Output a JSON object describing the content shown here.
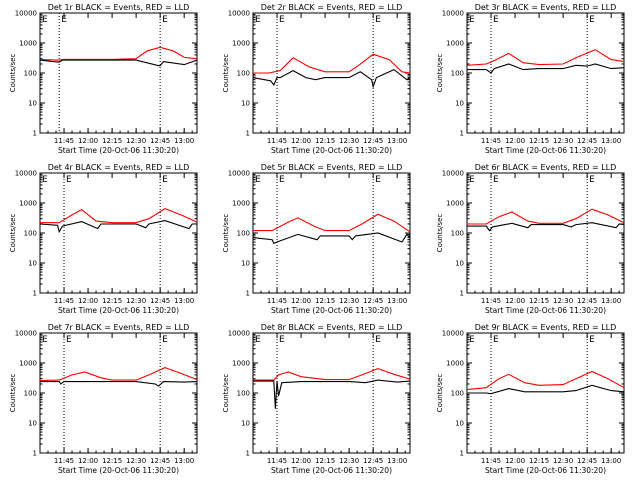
{
  "figure": {
    "xlabel": "Start Time (20-Oct-06 11:30:20)",
    "ylabel": "Counts/sec",
    "colors": {
      "events": "#000000",
      "lld": "#ff0000",
      "axes": "#000000",
      "background": "#ffffff"
    }
  },
  "chart_data": [
    {
      "type": "line",
      "title": "Det 1r BLACK = Events, RED = LLD",
      "xlabel": "Start Time (20-Oct-06 11:30:20)",
      "ylabel": "Counts/sec",
      "xticks": [
        "11:45",
        "12:00",
        "12:15",
        "12:30",
        "12:45",
        "13:00"
      ],
      "yticks": [
        "1",
        "10",
        "100",
        "1000",
        "10000"
      ],
      "ylim": [
        1,
        10000
      ],
      "yscale": "log",
      "xlim_minutes_after_11:30": [
        0,
        98
      ],
      "vlines": [
        "11:42",
        "12:45"
      ],
      "markers": [
        "E",
        "E"
      ],
      "series": [
        {
          "name": "Events",
          "color": "#000000",
          "x": [
            "11:30",
            "11:41",
            "11:42",
            "11:44",
            "12:00",
            "12:15",
            "12:30",
            "12:44",
            "12:45",
            "12:47",
            "13:00",
            "13:08"
          ],
          "y": [
            270,
            230,
            230,
            270,
            270,
            270,
            270,
            175,
            175,
            240,
            190,
            270
          ]
        },
        {
          "name": "LLD",
          "color": "#ff0000",
          "x": [
            "11:30",
            "11:41",
            "11:42",
            "11:44",
            "12:00",
            "12:15",
            "12:30",
            "12:37",
            "12:45",
            "12:53",
            "13:00",
            "13:08"
          ],
          "y": [
            280,
            270,
            270,
            285,
            285,
            285,
            300,
            550,
            720,
            550,
            330,
            300
          ]
        }
      ]
    },
    {
      "type": "line",
      "title": "Det 2r BLACK = Events, RED = LLD",
      "xlabel": "Start Time (20-Oct-06 11:30:20)",
      "ylabel": "Counts/sec",
      "xticks": [
        "11:45",
        "12:00",
        "12:15",
        "12:30",
        "12:45",
        "13:00"
      ],
      "yticks": [
        "1",
        "10",
        "100",
        "1000",
        "10000"
      ],
      "ylim": [
        1,
        10000
      ],
      "yscale": "log",
      "xlim_minutes_after_11:30": [
        0,
        98
      ],
      "vlines": [
        "11:45",
        "12:45"
      ],
      "markers": [
        "E",
        "E"
      ],
      "series": [
        {
          "name": "Events",
          "color": "#000000",
          "x": [
            "11:30",
            "11:41",
            "11:43",
            "11:45",
            "11:47",
            "11:55",
            "12:03",
            "12:09",
            "12:15",
            "12:30",
            "12:37",
            "12:44",
            "12:45",
            "12:47",
            "12:58",
            "13:06",
            "13:08"
          ],
          "y": [
            70,
            55,
            40,
            70,
            70,
            120,
            70,
            60,
            70,
            70,
            110,
            60,
            35,
            70,
            130,
            60,
            70
          ]
        },
        {
          "name": "LLD",
          "color": "#ff0000",
          "x": [
            "11:30",
            "11:40",
            "11:47",
            "11:55",
            "12:05",
            "12:15",
            "12:30",
            "12:36",
            "12:45",
            "12:55",
            "13:03",
            "13:08"
          ],
          "y": [
            100,
            100,
            120,
            320,
            160,
            110,
            110,
            180,
            420,
            280,
            110,
            100
          ]
        }
      ]
    },
    {
      "type": "line",
      "title": "Det 3r BLACK = Events, RED = LLD",
      "xlabel": "Start Time (20-Oct-06 11:30:20)",
      "ylabel": "Counts/sec",
      "xticks": [
        "11:45",
        "12:00",
        "12:15",
        "12:30",
        "12:45",
        "13:00"
      ],
      "yticks": [
        "1",
        "10",
        "100",
        "1000",
        "10000"
      ],
      "ylim": [
        1,
        10000
      ],
      "yscale": "log",
      "xlim_minutes_after_11:30": [
        0,
        98
      ],
      "vlines": [
        "11:45",
        "12:45"
      ],
      "markers": [
        "E",
        "E"
      ],
      "series": [
        {
          "name": "Events",
          "color": "#000000",
          "x": [
            "11:30",
            "11:42",
            "11:45",
            "11:47",
            "11:56",
            "12:05",
            "12:15",
            "12:30",
            "12:38",
            "12:45",
            "12:50",
            "13:00",
            "13:08"
          ],
          "y": [
            130,
            130,
            100,
            140,
            200,
            130,
            140,
            140,
            180,
            170,
            200,
            140,
            150
          ]
        },
        {
          "name": "LLD",
          "color": "#ff0000",
          "x": [
            "11:30",
            "11:42",
            "11:47",
            "11:56",
            "12:05",
            "12:15",
            "12:30",
            "12:38",
            "12:50",
            "13:00",
            "13:08"
          ],
          "y": [
            180,
            200,
            260,
            450,
            220,
            190,
            200,
            320,
            600,
            280,
            240
          ]
        }
      ]
    },
    {
      "type": "line",
      "title": "Det 4r BLACK = Events, RED = LLD",
      "xlabel": "Start Time (20-Oct-06 11:30:20)",
      "ylabel": "Counts/sec",
      "xticks": [
        "11:45",
        "12:00",
        "12:15",
        "12:30",
        "12:45",
        "13:00"
      ],
      "yticks": [
        "1",
        "10",
        "100",
        "1000",
        "10000"
      ],
      "ylim": [
        1,
        10000
      ],
      "yscale": "log",
      "xlim_minutes_after_11:30": [
        0,
        98
      ],
      "vlines": [
        "11:45",
        "12:45"
      ],
      "markers": [
        "E",
        "E"
      ],
      "series": [
        {
          "name": "Events",
          "color": "#000000",
          "x": [
            "11:30",
            "11:41",
            "11:42",
            "11:44",
            "11:56",
            "12:06",
            "12:08",
            "12:15",
            "12:30",
            "12:36",
            "12:38",
            "12:48",
            "13:03",
            "13:05",
            "13:08"
          ],
          "y": [
            200,
            180,
            110,
            170,
            240,
            140,
            200,
            200,
            200,
            150,
            200,
            260,
            140,
            200,
            200
          ]
        },
        {
          "name": "LLD",
          "color": "#ff0000",
          "x": [
            "11:30",
            "11:42",
            "11:50",
            "11:56",
            "12:05",
            "12:15",
            "12:30",
            "12:38",
            "12:48",
            "12:58",
            "13:08"
          ],
          "y": [
            220,
            220,
            400,
            600,
            250,
            220,
            220,
            300,
            650,
            400,
            230
          ]
        }
      ]
    },
    {
      "type": "line",
      "title": "Det 5r BLACK = Events, RED = LLD",
      "xlabel": "Start Time (20-Oct-06 11:30:20)",
      "ylabel": "Counts/sec",
      "xticks": [
        "11:45",
        "12:00",
        "12:15",
        "12:30",
        "12:45",
        "13:00"
      ],
      "yticks": [
        "1",
        "10",
        "100",
        "1000",
        "10000"
      ],
      "ylim": [
        1,
        10000
      ],
      "yscale": "log",
      "xlim_minutes_after_11:30": [
        0,
        98
      ],
      "vlines": [
        "11:45",
        "12:45"
      ],
      "markers": [
        "E",
        "E"
      ],
      "series": [
        {
          "name": "Events",
          "color": "#000000",
          "x": [
            "11:30",
            "11:42",
            "11:43",
            "11:45",
            "11:58",
            "12:10",
            "12:12",
            "12:15",
            "12:30",
            "12:32",
            "12:34",
            "12:48",
            "13:03",
            "13:06",
            "13:08"
          ],
          "y": [
            70,
            60,
            45,
            50,
            90,
            60,
            80,
            80,
            80,
            60,
            80,
            100,
            50,
            90,
            70
          ]
        },
        {
          "name": "LLD",
          "color": "#ff0000",
          "x": [
            "11:30",
            "11:42",
            "11:52",
            "11:58",
            "12:08",
            "12:15",
            "12:30",
            "12:38",
            "12:48",
            "12:58",
            "13:08"
          ],
          "y": [
            120,
            120,
            230,
            320,
            170,
            120,
            120,
            200,
            420,
            250,
            110
          ]
        }
      ]
    },
    {
      "type": "line",
      "title": "Det 6r BLACK = Events, RED = LLD",
      "xlabel": "Start Time (20-Oct-06 11:30:20)",
      "ylabel": "Counts/sec",
      "xticks": [
        "11:45",
        "12:00",
        "12:15",
        "12:30",
        "12:45",
        "13:00"
      ],
      "yticks": [
        "1",
        "10",
        "100",
        "1000",
        "10000"
      ],
      "ylim": [
        1,
        10000
      ],
      "yscale": "log",
      "xlim_minutes_after_11:30": [
        0,
        98
      ],
      "vlines": [
        "11:45",
        "12:45"
      ],
      "markers": [
        "E",
        "E"
      ],
      "series": [
        {
          "name": "Events",
          "color": "#000000",
          "x": [
            "11:30",
            "11:42",
            "11:44",
            "11:46",
            "11:58",
            "12:08",
            "12:10",
            "12:15",
            "12:30",
            "12:35",
            "12:38",
            "12:48",
            "13:03",
            "13:05",
            "13:08"
          ],
          "y": [
            170,
            170,
            120,
            160,
            210,
            150,
            190,
            190,
            190,
            160,
            190,
            220,
            150,
            200,
            190
          ]
        },
        {
          "name": "LLD",
          "color": "#ff0000",
          "x": [
            "11:30",
            "11:42",
            "11:50",
            "11:58",
            "12:08",
            "12:15",
            "12:30",
            "12:38",
            "12:48",
            "12:58",
            "13:08"
          ],
          "y": [
            200,
            200,
            350,
            500,
            250,
            210,
            210,
            300,
            620,
            400,
            220
          ]
        }
      ]
    },
    {
      "type": "line",
      "title": "Det 7r BLACK = Events, RED = LLD",
      "xlabel": "Start Time (20-Oct-06 11:30:20)",
      "ylabel": "Counts/sec",
      "xticks": [
        "11:45",
        "12:00",
        "12:15",
        "12:30",
        "12:45",
        "13:00"
      ],
      "yticks": [
        "1",
        "10",
        "100",
        "1000",
        "10000"
      ],
      "ylim": [
        1,
        10000
      ],
      "yscale": "log",
      "xlim_minutes_after_11:30": [
        0,
        98
      ],
      "vlines": [
        "11:45",
        "12:45"
      ],
      "markers": [
        "E",
        "E"
      ],
      "series": [
        {
          "name": "Events",
          "color": "#000000",
          "x": [
            "11:30",
            "11:42",
            "11:43",
            "11:45",
            "12:00",
            "12:15",
            "12:30",
            "12:42",
            "12:44",
            "12:47",
            "13:00",
            "13:08"
          ],
          "y": [
            240,
            240,
            200,
            240,
            240,
            240,
            240,
            200,
            170,
            240,
            230,
            240
          ]
        },
        {
          "name": "LLD",
          "color": "#ff0000",
          "x": [
            "11:30",
            "11:42",
            "11:50",
            "11:58",
            "12:08",
            "12:15",
            "12:30",
            "12:38",
            "12:48",
            "12:58",
            "13:08"
          ],
          "y": [
            260,
            270,
            400,
            500,
            320,
            270,
            270,
            400,
            700,
            450,
            280
          ]
        }
      ]
    },
    {
      "type": "line",
      "title": "Det 8r BLACK = Events, RED = LLD",
      "xlabel": "Start Time (20-Oct-06 11:30:20)",
      "ylabel": "Counts/sec",
      "xticks": [
        "11:45",
        "12:00",
        "12:15",
        "12:30",
        "12:45",
        "13:00"
      ],
      "yticks": [
        "1",
        "10",
        "100",
        "1000",
        "10000"
      ],
      "ylim": [
        1,
        10000
      ],
      "yscale": "log",
      "xlim_minutes_after_11:30": [
        0,
        98
      ],
      "vlines": [
        "11:45",
        "12:45"
      ],
      "markers": [
        "E",
        "E"
      ],
      "series": [
        {
          "name": "Events",
          "color": "#000000",
          "x": [
            "11:30",
            "11:43",
            "11:44",
            "11:45",
            "11:46",
            "11:48",
            "12:00",
            "12:15",
            "12:30",
            "12:35",
            "12:40",
            "12:48",
            "13:00",
            "13:08"
          ],
          "y": [
            250,
            250,
            30,
            250,
            80,
            220,
            240,
            240,
            240,
            230,
            220,
            270,
            230,
            250
          ]
        },
        {
          "name": "LLD",
          "color": "#ff0000",
          "x": [
            "11:30",
            "11:43",
            "11:46",
            "11:52",
            "12:00",
            "12:15",
            "12:30",
            "12:38",
            "12:48",
            "12:58",
            "13:08"
          ],
          "y": [
            270,
            270,
            400,
            500,
            350,
            280,
            280,
            400,
            650,
            420,
            290
          ]
        }
      ]
    },
    {
      "type": "line",
      "title": "Det 9r BLACK = Events, RED = LLD",
      "xlabel": "Start Time (20-Oct-06 11:30:20)",
      "ylabel": "Counts/sec",
      "xticks": [
        "11:45",
        "12:00",
        "12:15",
        "12:30",
        "12:45",
        "13:00"
      ],
      "yticks": [
        "1",
        "10",
        "100",
        "1000",
        "10000"
      ],
      "ylim": [
        1,
        10000
      ],
      "yscale": "log",
      "xlim_minutes_after_11:30": [
        0,
        98
      ],
      "vlines": [
        "11:45",
        "12:45"
      ],
      "markers": [
        "E",
        "E"
      ],
      "series": [
        {
          "name": "Events",
          "color": "#000000",
          "x": [
            "11:30",
            "11:42",
            "11:45",
            "11:56",
            "12:06",
            "12:15",
            "12:30",
            "12:38",
            "12:48",
            "13:00",
            "13:08"
          ],
          "y": [
            100,
            100,
            95,
            140,
            110,
            110,
            110,
            120,
            180,
            120,
            110
          ]
        },
        {
          "name": "LLD",
          "color": "#ff0000",
          "x": [
            "11:30",
            "11:42",
            "11:50",
            "11:56",
            "12:06",
            "12:15",
            "12:30",
            "12:38",
            "12:48",
            "12:58",
            "13:08"
          ],
          "y": [
            130,
            150,
            300,
            420,
            220,
            180,
            190,
            300,
            520,
            300,
            150
          ]
        }
      ]
    }
  ]
}
